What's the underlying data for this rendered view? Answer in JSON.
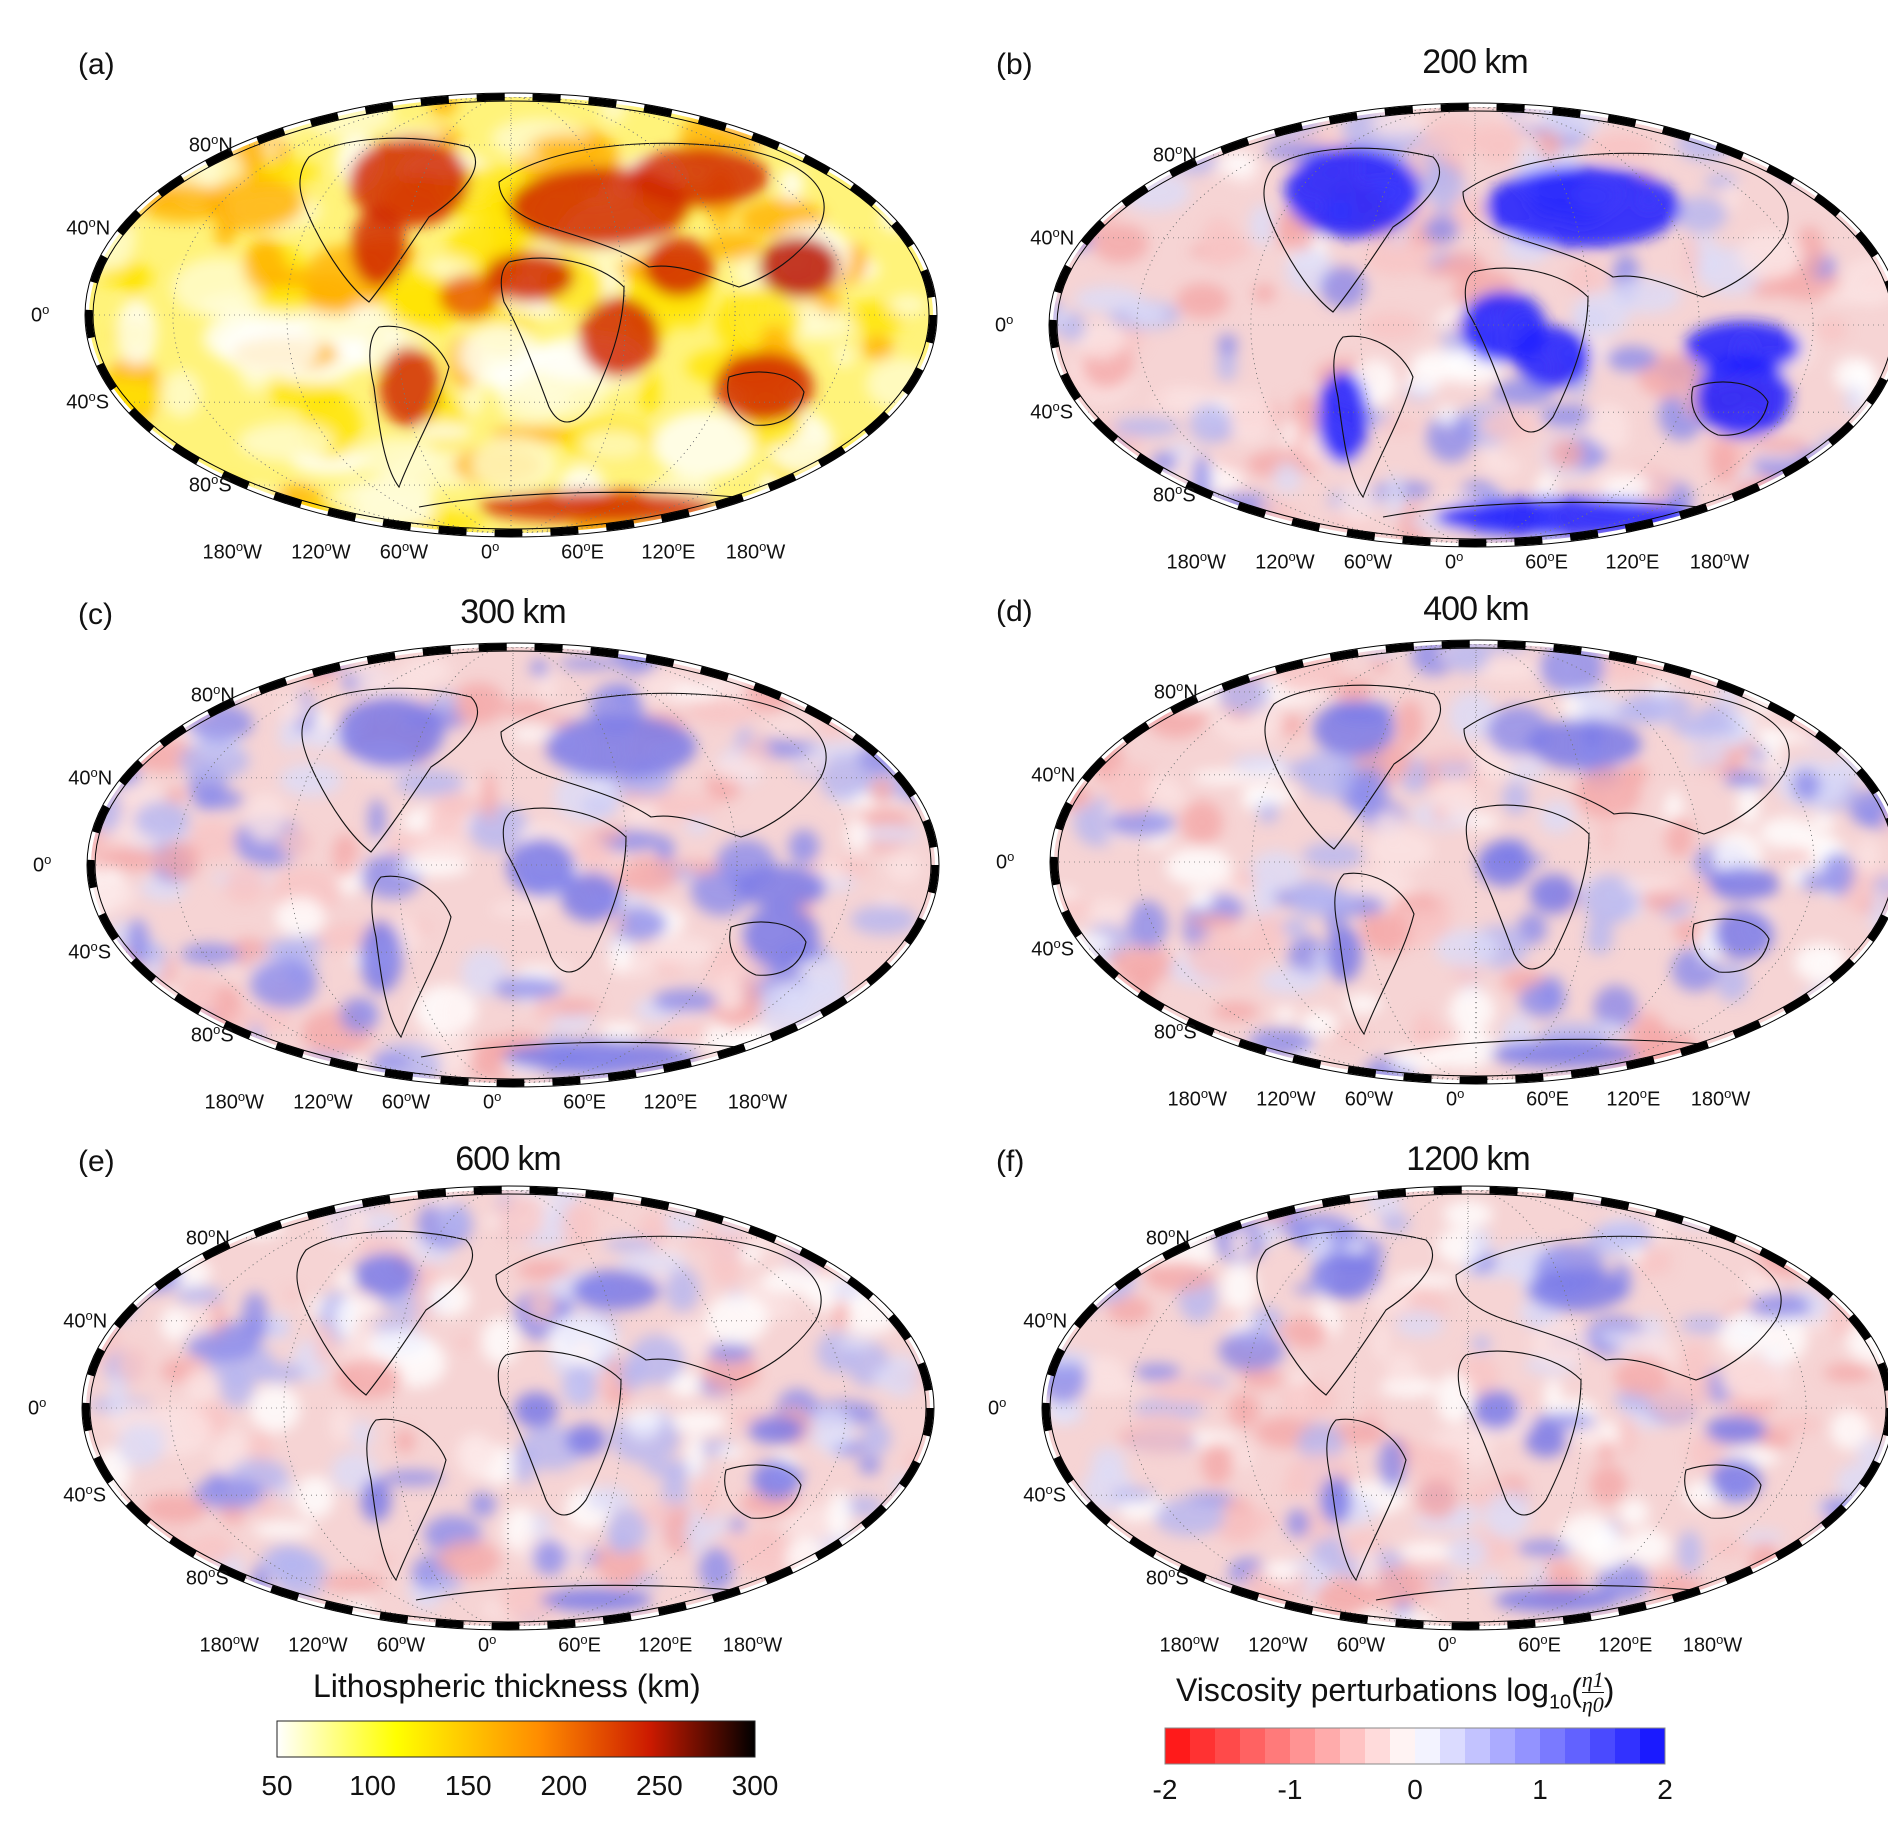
{
  "panels": [
    {
      "label": "(a)",
      "title": "",
      "colormap": "thickness"
    },
    {
      "label": "(b)",
      "title": "200 km",
      "colormap": "viscosity"
    },
    {
      "label": "(c)",
      "title": "300 km",
      "colormap": "viscosity"
    },
    {
      "label": "(d)",
      "title": "400 km",
      "colormap": "viscosity"
    },
    {
      "label": "(e)",
      "title": "600 km",
      "colormap": "viscosity"
    },
    {
      "label": "(f)",
      "title": "1200 km",
      "colormap": "viscosity"
    }
  ],
  "lat_labels": [
    "80",
    "40",
    "0",
    "40",
    "80"
  ],
  "lat_suffix": [
    "N",
    "N",
    "",
    "S",
    "S"
  ],
  "lon_labels": [
    "180",
    "120",
    "60",
    "0",
    "60",
    "120",
    "180"
  ],
  "lon_suffix": [
    "W",
    "W",
    "W",
    "",
    "E",
    "E",
    "W"
  ],
  "degree_symbol": "o",
  "colorbar_thickness": {
    "title": "Lithospheric thickness (km)",
    "ticks": [
      "50",
      "100",
      "150",
      "200",
      "250",
      "300"
    ],
    "colors": [
      "#ffffff",
      "#ffff00",
      "#ff8c00",
      "#cc1a00",
      "#000000"
    ]
  },
  "colorbar_viscosity": {
    "title_prefix": "Viscosity perturbations log",
    "title_sub": "10",
    "title_frac_num": "η1",
    "title_frac_den": "η0",
    "ticks": [
      "-2",
      "-1",
      "0",
      "1",
      "2"
    ],
    "colors": [
      "#ff1a1a",
      "#ffffff",
      "#1a1aff"
    ]
  }
}
